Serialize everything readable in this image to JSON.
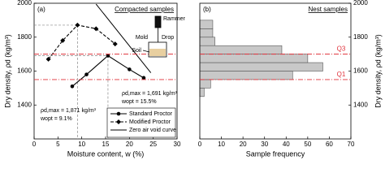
{
  "chart_data": [
    {
      "type": "line",
      "panel_label": "(a)",
      "title": "Compacted samples",
      "xlabel": "Moisture content, w (%)",
      "ylabel": "Dry density, ρd (kg/m³)",
      "xlim": [
        0,
        30
      ],
      "xticks": [
        0,
        5,
        10,
        15,
        20,
        25,
        30
      ],
      "ylim": [
        1200,
        2000
      ],
      "yticks": [
        1400,
        1600,
        1800,
        2000
      ],
      "series": [
        {
          "name": "Standard Proctor",
          "color": "#000000",
          "marker": "circle",
          "dashed": false,
          "x": [
            8,
            11,
            15.5,
            20,
            23
          ],
          "values": [
            1510,
            1580,
            1691,
            1610,
            1560
          ]
        },
        {
          "name": "Modified Proctor",
          "color": "#000000",
          "marker": "diamond",
          "dashed": true,
          "x": [
            3,
            6,
            9.1,
            13,
            17
          ],
          "values": [
            1670,
            1780,
            1871,
            1850,
            1760
          ]
        },
        {
          "name": "Zero air void curve",
          "color": "#000000",
          "marker": "none",
          "dashed": false,
          "x": [
            13,
            24.5
          ],
          "values": [
            1995,
            1590
          ]
        }
      ],
      "optimum": [
        {
          "w": 9.1,
          "rho": 1871
        },
        {
          "w": 15.5,
          "rho": 1691
        }
      ],
      "annotations": [
        "ρd,max = 1,871 kg/m³",
        "wopt = 9.1%",
        "ρd,max = 1,691 kg/m³",
        "wopt = 15.5%"
      ],
      "inset_labels": [
        "Rammer",
        "Mold",
        "Drop",
        "Soil"
      ]
    },
    {
      "type": "histogram",
      "panel_label": "(b)",
      "title": "Nest samples",
      "xlabel": "Sample frequency",
      "ylabel": "Dry density, ρd (kg/m³)",
      "xlim": [
        0,
        70
      ],
      "xticks": [
        0,
        10,
        20,
        30,
        40,
        50,
        60,
        70
      ],
      "ylim": [
        1200,
        2000
      ],
      "yticks": [
        1400,
        1600,
        1800,
        2000
      ],
      "bins": [
        1450,
        1500,
        1550,
        1600,
        1650,
        1700,
        1750,
        1800,
        1850,
        1900
      ],
      "counts": [
        2,
        5,
        43,
        57,
        50,
        38,
        7,
        6,
        6
      ],
      "color": "#c8c8c8",
      "quartiles": [
        {
          "label": "Q1",
          "value": 1550
        },
        {
          "label": "Q3",
          "value": 1700
        }
      ],
      "quartile_color": "#e0303a"
    }
  ]
}
